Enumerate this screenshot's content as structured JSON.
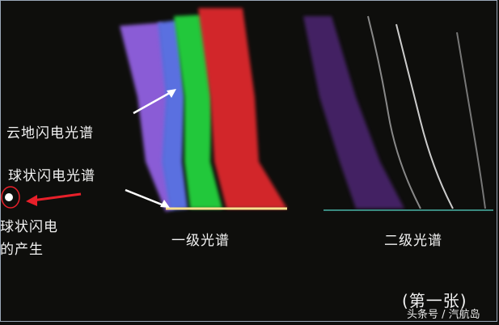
{
  "labels": {
    "cloud_ground": "云地闪电光谱",
    "ball_lightning": "球状闪电光谱",
    "ball_origin_line1": "球状闪电",
    "ball_origin_line2": "的产生",
    "first_order": "一级光谱",
    "second_order": "二级光谱",
    "caption": "(第一张)"
  },
  "watermark": "头条号 / 汽航岛",
  "colors": {
    "background": "#0e0e0c",
    "arrow_red": "#e8202a",
    "arrow_white": "#ffffff"
  }
}
